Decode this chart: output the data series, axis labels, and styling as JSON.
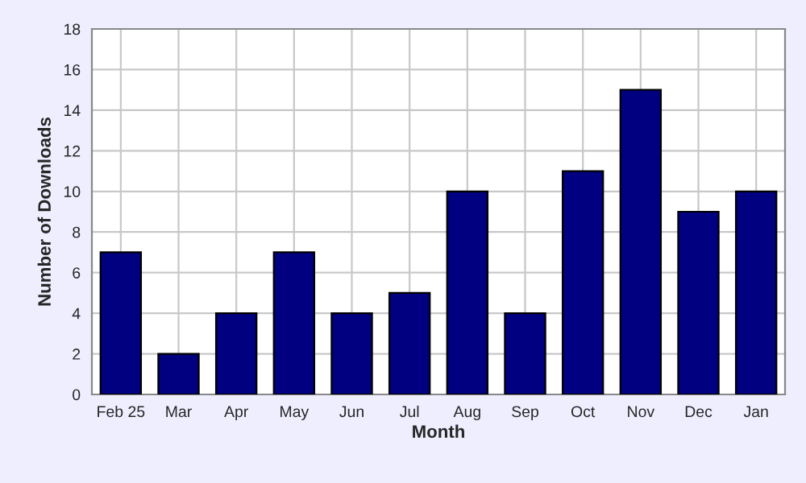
{
  "chart_data": {
    "type": "bar",
    "xlabel": "Month",
    "ylabel": "Number of Downloads",
    "categories": [
      "Feb 25",
      "Mar",
      "Apr",
      "May",
      "Jun",
      "Jul",
      "Aug",
      "Sep",
      "Oct",
      "Nov",
      "Dec",
      "Jan"
    ],
    "values": [
      7,
      2,
      4,
      7,
      4,
      5,
      10,
      4,
      11,
      15,
      9,
      10
    ],
    "color": "#000080",
    "ylim": [
      0,
      18
    ],
    "yticks": [
      0,
      2,
      4,
      6,
      8,
      10,
      12,
      14,
      16,
      18
    ],
    "grid": true
  }
}
